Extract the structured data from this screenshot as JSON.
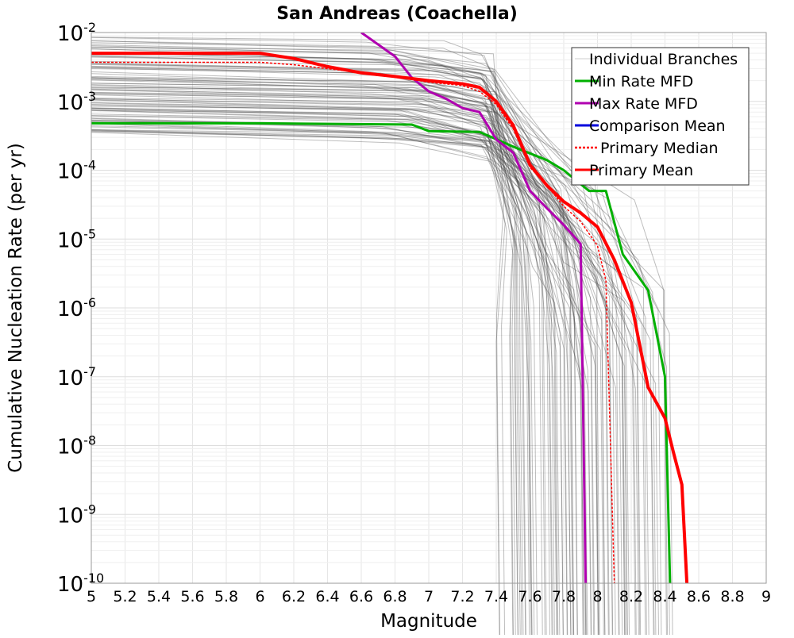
{
  "chart_data": {
    "type": "line",
    "title": "San Andreas (Coachella)",
    "xlabel": "Magnitude",
    "ylabel": "Cumulative Nucleation Rate (per yr)",
    "xlim": [
      5,
      9
    ],
    "ylim_log10": [
      -10,
      -2
    ],
    "y_scale": "log",
    "grid": true,
    "legend_position": "top-right",
    "x_ticks": [
      "5",
      "5.2",
      "5.4",
      "5.6",
      "5.8",
      "6",
      "6.2",
      "6.4",
      "6.6",
      "6.8",
      "7",
      "7.2",
      "7.4",
      "7.6",
      "7.8",
      "8",
      "8.2",
      "8.4",
      "8.6",
      "8.8",
      "9"
    ],
    "y_ticks": [
      {
        "base": "10",
        "exp": "-2",
        "log10": -2
      },
      {
        "base": "10",
        "exp": "-3",
        "log10": -3
      },
      {
        "base": "10",
        "exp": "-4",
        "log10": -4
      },
      {
        "base": "10",
        "exp": "-5",
        "log10": -5
      },
      {
        "base": "10",
        "exp": "-6",
        "log10": -6
      },
      {
        "base": "10",
        "exp": "-7",
        "log10": -7
      },
      {
        "base": "10",
        "exp": "-8",
        "log10": -8
      },
      {
        "base": "10",
        "exp": "-9",
        "log10": -9
      },
      {
        "base": "10",
        "exp": "-10",
        "log10": -10
      }
    ],
    "legend": [
      {
        "label": "Individual Branches",
        "color": "#cccccc",
        "style": "solid"
      },
      {
        "label": "Min Rate MFD",
        "color": "#00b000",
        "style": "solid"
      },
      {
        "label": "Max Rate MFD",
        "color": "#b000b0",
        "style": "solid"
      },
      {
        "label": "Comparison Mean",
        "color": "#0000dd",
        "style": "solid"
      },
      {
        "label": "Primary Median",
        "color": "#ff0000",
        "style": "dotted"
      },
      {
        "label": "Primary Mean",
        "color": "#ff0000",
        "style": "solid"
      }
    ],
    "series": [
      {
        "name": "Min Rate MFD",
        "color": "#00b000",
        "width": 3,
        "x": [
          5.0,
          6.0,
          6.9,
          7.0,
          7.3,
          7.5,
          7.7,
          7.8,
          7.95,
          8.05,
          8.15,
          8.3,
          8.4,
          8.43
        ],
        "y": [
          0.00048,
          0.00048,
          0.00046,
          0.00037,
          0.00036,
          0.00022,
          0.00014,
          0.0001,
          5e-05,
          5e-05,
          6e-06,
          1.8e-06,
          1e-07,
          1e-10
        ]
      },
      {
        "name": "Max Rate MFD",
        "color": "#b000b0",
        "width": 3,
        "x": [
          6.6,
          6.8,
          6.9,
          7.0,
          7.1,
          7.2,
          7.3,
          7.4,
          7.5,
          7.55,
          7.6,
          7.7,
          7.8,
          7.9,
          7.93
        ],
        "y": [
          0.01,
          0.0045,
          0.0022,
          0.0014,
          0.0011,
          0.0008,
          0.0007,
          0.00028,
          0.00018,
          9.5e-05,
          5e-05,
          2.8e-05,
          1.6e-05,
          8.5e-06,
          1e-10
        ]
      },
      {
        "name": "Primary Median",
        "color": "#ff0000",
        "width": 1.5,
        "dash": "3,2",
        "x": [
          5.0,
          6.0,
          6.2,
          6.5,
          6.8,
          7.0,
          7.2,
          7.3,
          7.4,
          7.5,
          7.6,
          7.7,
          7.8,
          7.9,
          8.0,
          8.05,
          8.1
        ],
        "y": [
          0.0037,
          0.0037,
          0.0034,
          0.0028,
          0.0023,
          0.0019,
          0.0017,
          0.0014,
          0.0009,
          0.0004,
          0.00011,
          6e-05,
          3e-05,
          1.8e-05,
          8e-06,
          2.5e-06,
          1e-10
        ]
      },
      {
        "name": "Primary Mean",
        "color": "#ff0000",
        "width": 4,
        "x": [
          5.0,
          6.0,
          6.2,
          6.4,
          6.6,
          6.8,
          7.0,
          7.2,
          7.3,
          7.4,
          7.5,
          7.6,
          7.7,
          7.8,
          7.9,
          8.0,
          8.1,
          8.2,
          8.3,
          8.4,
          8.45,
          8.5,
          8.53
        ],
        "y": [
          0.005,
          0.005,
          0.0042,
          0.0032,
          0.0026,
          0.0023,
          0.002,
          0.0018,
          0.0016,
          0.001,
          0.00045,
          0.00012,
          6e-05,
          3.5e-05,
          2.4e-05,
          1.5e-05,
          5e-06,
          1.2e-06,
          7e-08,
          2.5e-08,
          8e-09,
          2.7e-09,
          1e-10
        ]
      }
    ]
  }
}
